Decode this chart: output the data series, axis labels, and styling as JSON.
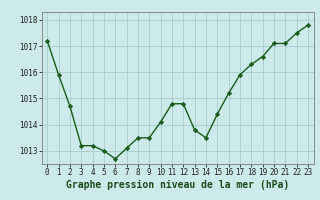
{
  "x": [
    0,
    1,
    2,
    3,
    4,
    5,
    6,
    7,
    8,
    9,
    10,
    11,
    12,
    13,
    14,
    15,
    16,
    17,
    18,
    19,
    20,
    21,
    22,
    23
  ],
  "y": [
    1017.2,
    1015.9,
    1014.7,
    1013.2,
    1013.2,
    1013.0,
    1012.7,
    1013.1,
    1013.5,
    1013.5,
    1014.1,
    1014.8,
    1014.8,
    1013.8,
    1013.5,
    1014.4,
    1015.2,
    1015.9,
    1016.3,
    1016.6,
    1017.1,
    1017.1,
    1017.5,
    1017.8
  ],
  "line_color": "#1a5c1a",
  "marker": "D",
  "marker_size": 2.2,
  "bg_color": "#cceaea",
  "grid_color": "#aacccc",
  "xlabel": "Graphe pression niveau de la mer (hPa)",
  "xlabel_fontsize": 7,
  "yticks": [
    1013,
    1014,
    1015,
    1016,
    1017,
    1018
  ],
  "xticks": [
    0,
    1,
    2,
    3,
    4,
    5,
    6,
    7,
    8,
    9,
    10,
    11,
    12,
    13,
    14,
    15,
    16,
    17,
    18,
    19,
    20,
    21,
    22,
    23
  ],
  "ylim": [
    1012.5,
    1018.3
  ],
  "xlim": [
    -0.5,
    23.5
  ],
  "tick_fontsize": 5.5,
  "linewidth": 1.0,
  "spine_color": "#888888"
}
